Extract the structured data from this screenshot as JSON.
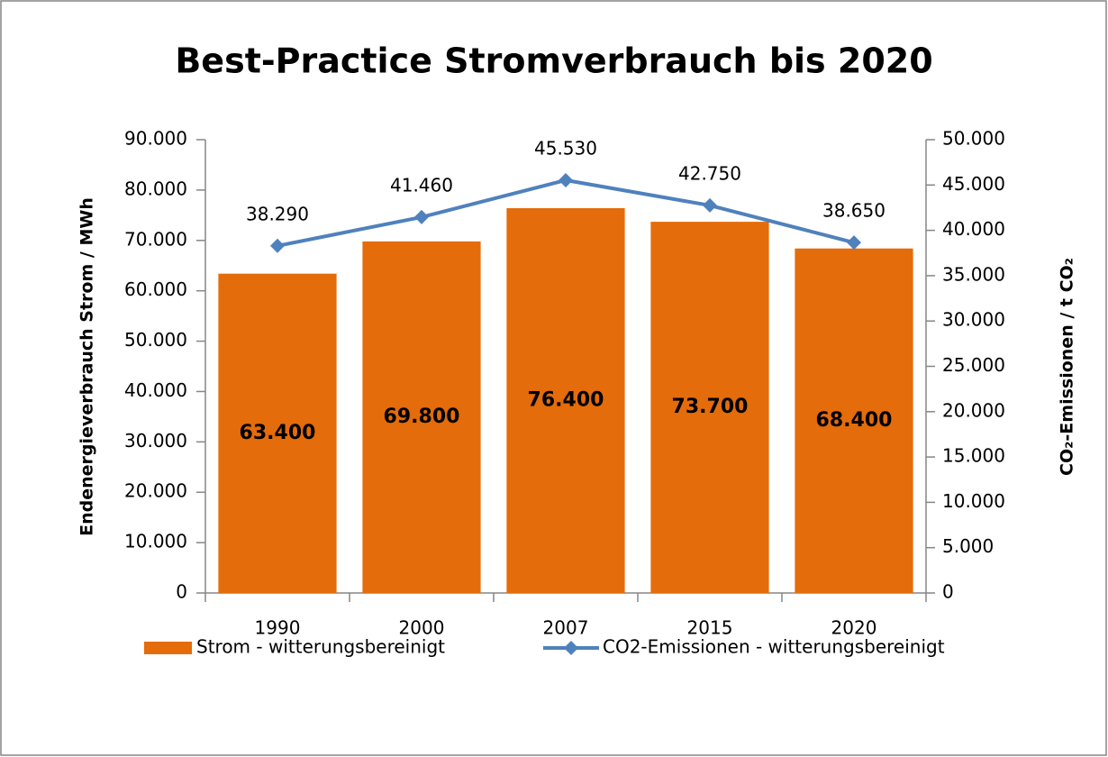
{
  "chart_data": {
    "type": "bar",
    "title": "Best-Practice Stromverbrauch bis 2020",
    "y_label": "Endenergieverbrauch Strom / MWh",
    "y2_label": "CO₂-Emissionen / t CO₂",
    "categories": [
      "1990",
      "2000",
      "2007",
      "2015",
      "2020"
    ],
    "series": [
      {
        "name": "Strom - witterungsbereinigt",
        "type": "bar",
        "color": "#e46c0a",
        "values": [
          63400,
          69800,
          76400,
          73700,
          68400
        ],
        "value_labels": [
          "63.400",
          "69.800",
          "76.400",
          "73.700",
          "68.400"
        ]
      },
      {
        "name": "CO2-Emissionen - witterungsbereinigt",
        "type": "line",
        "axis": "y2",
        "color": "#4f81bd",
        "values": [
          38290,
          41460,
          45530,
          42750,
          38650
        ],
        "value_labels": [
          "38.290",
          "41.460",
          "45.530",
          "42.750",
          "38.650"
        ]
      }
    ],
    "ylim": [
      0,
      90000
    ],
    "yticks": [
      0,
      {
        "value": 10000,
        "label": "10.000"
      },
      {
        "value": 20000,
        "label": "20.000"
      },
      {
        "value": 30000,
        "label": "30.000"
      },
      {
        "value": 40000,
        "label": "40.000"
      },
      {
        "value": 50000,
        "label": "50.000"
      },
      {
        "value": 60000,
        "label": "60.000"
      },
      {
        "value": 70000,
        "label": "70.000"
      },
      {
        "value": 80000,
        "label": "80.000"
      },
      {
        "value": 90000,
        "label": "90.000"
      }
    ],
    "y2lim": [
      0,
      50000
    ],
    "y2ticks": [
      0,
      {
        "value": 5000,
        "label": "5.000"
      },
      {
        "value": 10000,
        "label": "10.000"
      },
      {
        "value": 15000,
        "label": "15.000"
      },
      {
        "value": 20000,
        "label": "20.000"
      },
      {
        "value": 25000,
        "label": "25.000"
      },
      {
        "value": 30000,
        "label": "30.000"
      },
      {
        "value": 35000,
        "label": "35.000"
      },
      {
        "value": 40000,
        "label": "40.000"
      },
      {
        "value": 45000,
        "label": "45.000"
      },
      {
        "value": 50000,
        "label": "50.000"
      }
    ],
    "legend": "bottom",
    "grid": false
  }
}
